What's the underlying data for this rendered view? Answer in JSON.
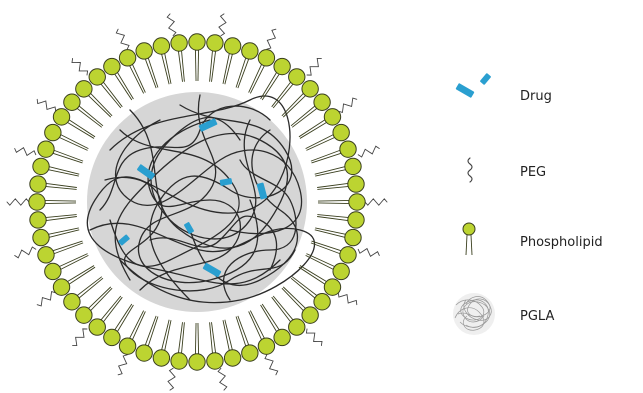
{
  "legend": {
    "items": [
      {
        "key": "drug",
        "label": "Drug",
        "icon": "drug-icon"
      },
      {
        "key": "peg",
        "label": "PEG",
        "icon": "peg-icon"
      },
      {
        "key": "phospholipid",
        "label": "Phospholipid",
        "icon": "phospholipid-icon"
      },
      {
        "key": "pgla",
        "label": "PGLA",
        "icon": "pgla-icon"
      }
    ]
  },
  "colors": {
    "phospholipid_head": "#bcd431",
    "phospholipid_outline": "#3a3f1e",
    "drug": "#2a9fd0",
    "core_fill": "#d6d6d6",
    "polymer_strand": "#2b2b2b",
    "peg": "#444444"
  }
}
